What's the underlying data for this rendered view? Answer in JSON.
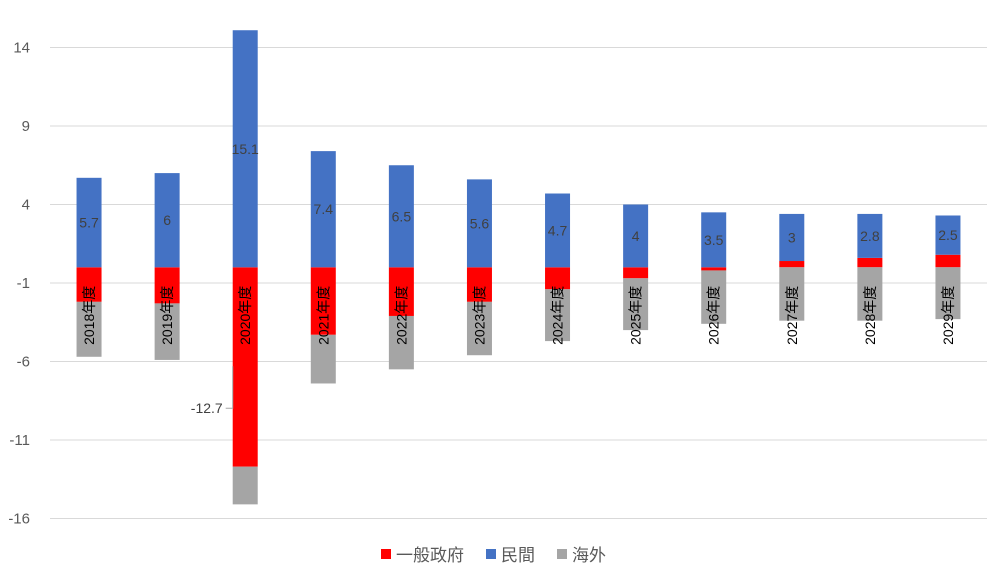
{
  "chart_data": {
    "type": "bar",
    "stacked": true,
    "categories": [
      "2018年度",
      "2019年度",
      "2020年度",
      "2021年度",
      "2022年度",
      "2023年度",
      "2024年度",
      "2025年度",
      "2026年度",
      "2027年度",
      "2028年度",
      "2029年度"
    ],
    "series": [
      {
        "name": "一般政府",
        "color": "#ff0000",
        "values": [
          -2.2,
          -2.3,
          -12.7,
          -4.3,
          -3.1,
          -2.2,
          -1.4,
          -0.7,
          -0.2,
          0.4,
          0.6,
          0.8
        ]
      },
      {
        "name": "民間",
        "color": "#4472c4",
        "values": [
          5.7,
          6,
          15.1,
          7.4,
          6.5,
          5.6,
          4.7,
          4,
          3.5,
          3,
          2.8,
          2.5
        ]
      },
      {
        "name": "海外",
        "color": "#a5a5a5",
        "values": [
          -3.5,
          -3.6,
          -2.4,
          -3.1,
          -3.4,
          -3.4,
          -3.3,
          -3.3,
          -3.4,
          -3.4,
          -3.4,
          -3.3
        ]
      }
    ],
    "data_labels": {
      "民間": [
        "5.7",
        "6",
        "15.1",
        "7.4",
        "6.5",
        "5.6",
        "4.7",
        "4",
        "3.5",
        "3",
        "2.8",
        "2.5"
      ],
      "一般政府_callout": {
        "category": "2020年度",
        "label": "-12.7"
      }
    },
    "y_ticks": [
      14,
      9,
      4,
      -1,
      -6,
      -11,
      -16
    ],
    "ylim": [
      -16,
      15.1
    ],
    "grid": true,
    "legend_position": "bottom"
  }
}
